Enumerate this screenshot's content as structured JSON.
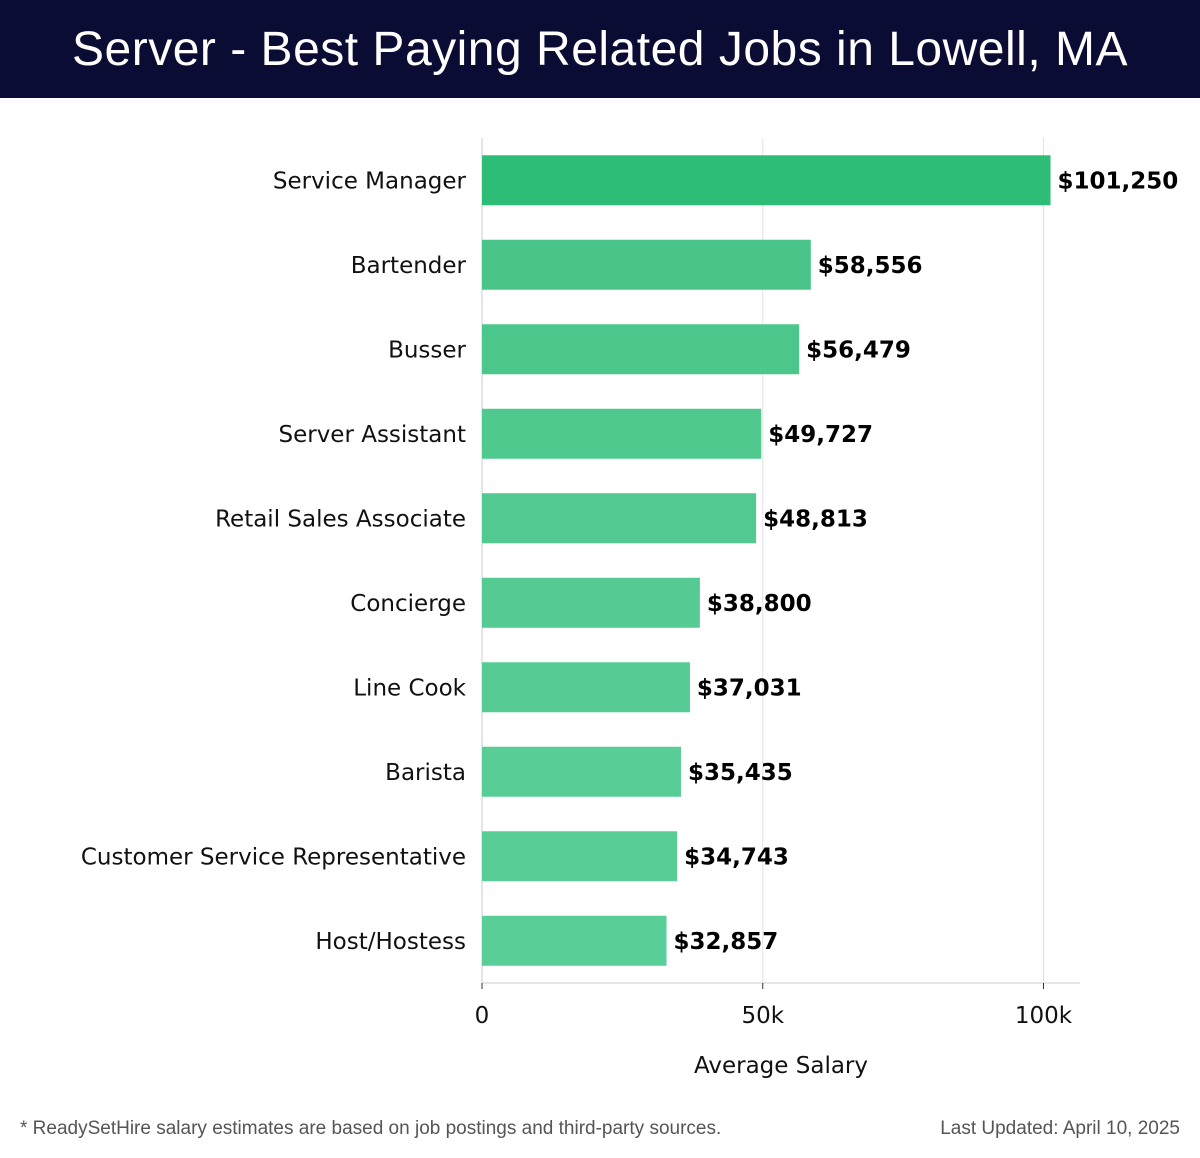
{
  "header": {
    "title": "Server - Best Paying Related Jobs in Lowell, MA"
  },
  "chart_data": {
    "type": "bar",
    "orientation": "horizontal",
    "title": "Server - Best Paying Related Jobs in Lowell, MA",
    "xlabel": "Average Salary",
    "ylabel": "",
    "xlim": [
      0,
      106500
    ],
    "xticks": [
      0,
      50000,
      100000
    ],
    "xtick_labels": [
      "0",
      "50k",
      "100k"
    ],
    "grid": true,
    "categories": [
      "Service Manager",
      "Bartender",
      "Busser",
      "Server Assistant",
      "Retail Sales Associate",
      "Concierge",
      "Line Cook",
      "Barista",
      "Customer Service Representative",
      "Host/Hostess"
    ],
    "values": [
      101250,
      58556,
      56479,
      49727,
      48813,
      38800,
      37031,
      35435,
      34743,
      32857
    ],
    "value_labels": [
      "$101,250",
      "$58,556",
      "$56,479",
      "$49,727",
      "$48,813",
      "$38,800",
      "$37,031",
      "$35,435",
      "$34,743",
      "$32,857"
    ],
    "colors": [
      "#2ebd76",
      "#49c58a",
      "#4cc78c",
      "#50c98f",
      "#51c990",
      "#55cb93",
      "#56cc94",
      "#58cd96",
      "#58cd96",
      "#59ce97"
    ]
  },
  "footer": {
    "note": "* ReadySetHire salary estimates are based on job postings and third-party sources.",
    "updated": "Last Updated: April 10, 2025"
  }
}
